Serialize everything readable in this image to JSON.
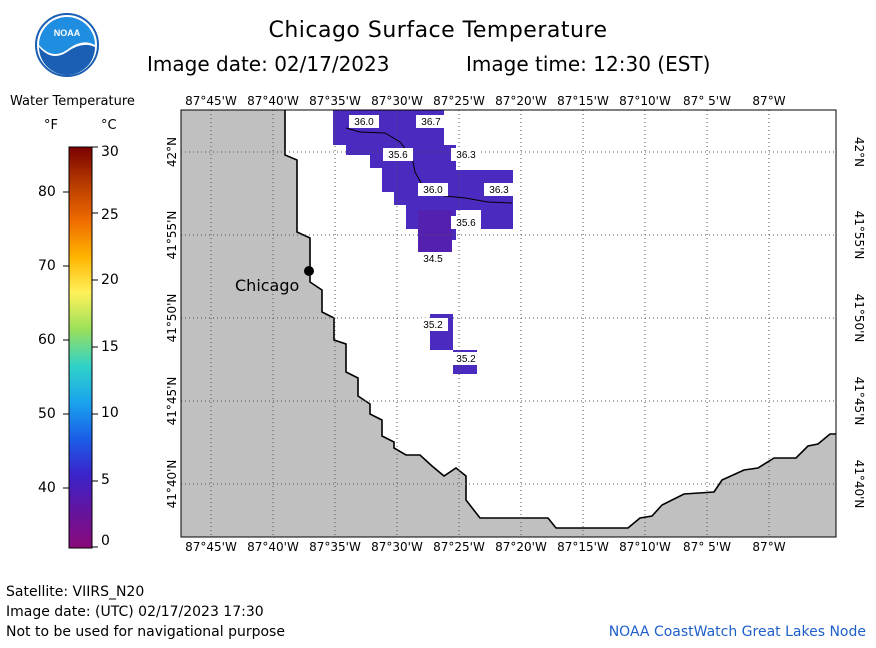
{
  "header": {
    "title": "Chicago Surface Temperature",
    "image_date": "Image date: 02/17/2023",
    "image_time": "Image time: 12:30 (EST)"
  },
  "logo": {
    "text": "NOAA",
    "colors": {
      "sky": "#1f8de0",
      "wave": "#ffffff",
      "ring": "#1a5fb4"
    }
  },
  "legend": {
    "title": "Water Temperature",
    "unit_f": "°F",
    "unit_c": "°C",
    "f_ticks": [
      "80",
      "70",
      "60",
      "50",
      "40"
    ],
    "c_ticks": [
      "30",
      "25",
      "20",
      "15",
      "10",
      "5",
      "0"
    ],
    "colormap": [
      "#7a0000",
      "#b73a00",
      "#ee6a00",
      "#ffb300",
      "#fff25a",
      "#9ae05a",
      "#30d2c8",
      "#1aa4ee",
      "#1a5ee8",
      "#3a23c9",
      "#64149e",
      "#8a0a7a"
    ]
  },
  "map": {
    "lon_labels": [
      "87°45'W",
      "87°40'W",
      "87°35'W",
      "87°30'W",
      "87°25'W",
      "87°20'W",
      "87°15'W",
      "87°10'W",
      "87° 5'W",
      "87°W"
    ],
    "lat_labels": [
      "42°N",
      "41°55'N",
      "41°50'N",
      "41°45'N",
      "41°40'N"
    ],
    "city": "Chicago",
    "colors": {
      "land": "#c0c0c0",
      "water": "#ffffff",
      "grid": "#555555",
      "patch": "#4b2ac0",
      "patch_dark": "#5320b0"
    },
    "temp_labels": [
      "36.0",
      "36.7",
      "35.6",
      "36.3",
      "36.0",
      "36.3",
      "35.6",
      "34.5",
      "35.2",
      "35.2"
    ]
  },
  "footer": {
    "satellite": "Satellite: VIIRS_N20",
    "utc_date": "Image date: (UTC) 02/17/2023  17:30",
    "disclaimer": "Not to be used for navigational purpose",
    "credit": "NOAA CoastWatch Great Lakes Node"
  }
}
